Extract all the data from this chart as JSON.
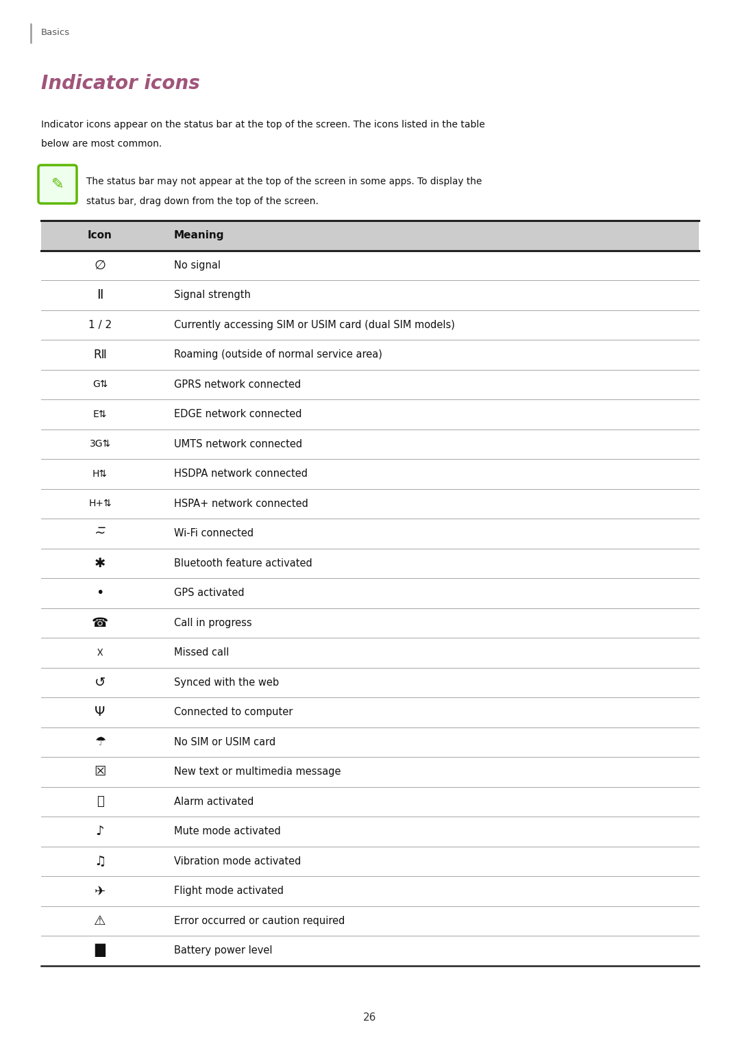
{
  "page_bg": "#ffffff",
  "page_number": "26",
  "header_text": "Basics",
  "title": "Indicator icons",
  "title_color": "#a0547a",
  "body_line1": "Indicator icons appear on the status bar at the top of the screen. The icons listed in the table",
  "body_line2": "below are most common.",
  "note_line1": "The status bar may not appear at the top of the screen in some apps. To display the",
  "note_line2": "status bar, drag down from the top of the screen.",
  "note_icon_color": "#5cb800",
  "table_header_bg": "#cccccc",
  "table_header_icon_col": "Icon",
  "table_header_meaning_col": "Meaning",
  "rows": [
    {
      "icon": "∅",
      "meaning": "No signal",
      "icon_font": 14
    },
    {
      "icon": "Ⅱ",
      "meaning": "Signal strength",
      "icon_font": 14
    },
    {
      "icon": "1 / 2",
      "meaning": "Currently accessing SIM or USIM card (dual SIM models)",
      "icon_font": 11
    },
    {
      "icon": "RⅡ",
      "meaning": "Roaming (outside of normal service area)",
      "icon_font": 12
    },
    {
      "icon": "G⇅",
      "meaning": "GPRS network connected",
      "icon_font": 10
    },
    {
      "icon": "E⇅",
      "meaning": "EDGE network connected",
      "icon_font": 10
    },
    {
      "icon": "3G⇅",
      "meaning": "UMTS network connected",
      "icon_font": 10
    },
    {
      "icon": "H⇅",
      "meaning": "HSDPA network connected",
      "icon_font": 10
    },
    {
      "icon": "H+⇅",
      "meaning": "HSPA+ network connected",
      "icon_font": 10
    },
    {
      "icon": "~̅",
      "meaning": "Wi-Fi connected",
      "icon_font": 14
    },
    {
      "icon": "✱",
      "meaning": "Bluetooth feature activated",
      "icon_font": 14
    },
    {
      "icon": "•",
      "meaning": "GPS activated",
      "icon_font": 14
    },
    {
      "icon": "☎",
      "meaning": "Call in progress",
      "icon_font": 14
    },
    {
      "icon": "☓",
      "meaning": "Missed call",
      "icon_font": 14
    },
    {
      "icon": "↺",
      "meaning": "Synced with the web",
      "icon_font": 14
    },
    {
      "icon": "Ψ",
      "meaning": "Connected to computer",
      "icon_font": 14
    },
    {
      "icon": "☂",
      "meaning": "No SIM or USIM card",
      "icon_font": 13
    },
    {
      "icon": "☒",
      "meaning": "New text or multimedia message",
      "icon_font": 14
    },
    {
      "icon": "⏰",
      "meaning": "Alarm activated",
      "icon_font": 13
    },
    {
      "icon": "♪",
      "meaning": "Mute mode activated",
      "icon_font": 14
    },
    {
      "icon": "♫",
      "meaning": "Vibration mode activated",
      "icon_font": 14
    },
    {
      "icon": "✈",
      "meaning": "Flight mode activated",
      "icon_font": 14
    },
    {
      "icon": "⚠",
      "meaning": "Error occurred or caution required",
      "icon_font": 14
    },
    {
      "icon": "█",
      "meaning": "Battery power level",
      "icon_font": 14
    }
  ]
}
